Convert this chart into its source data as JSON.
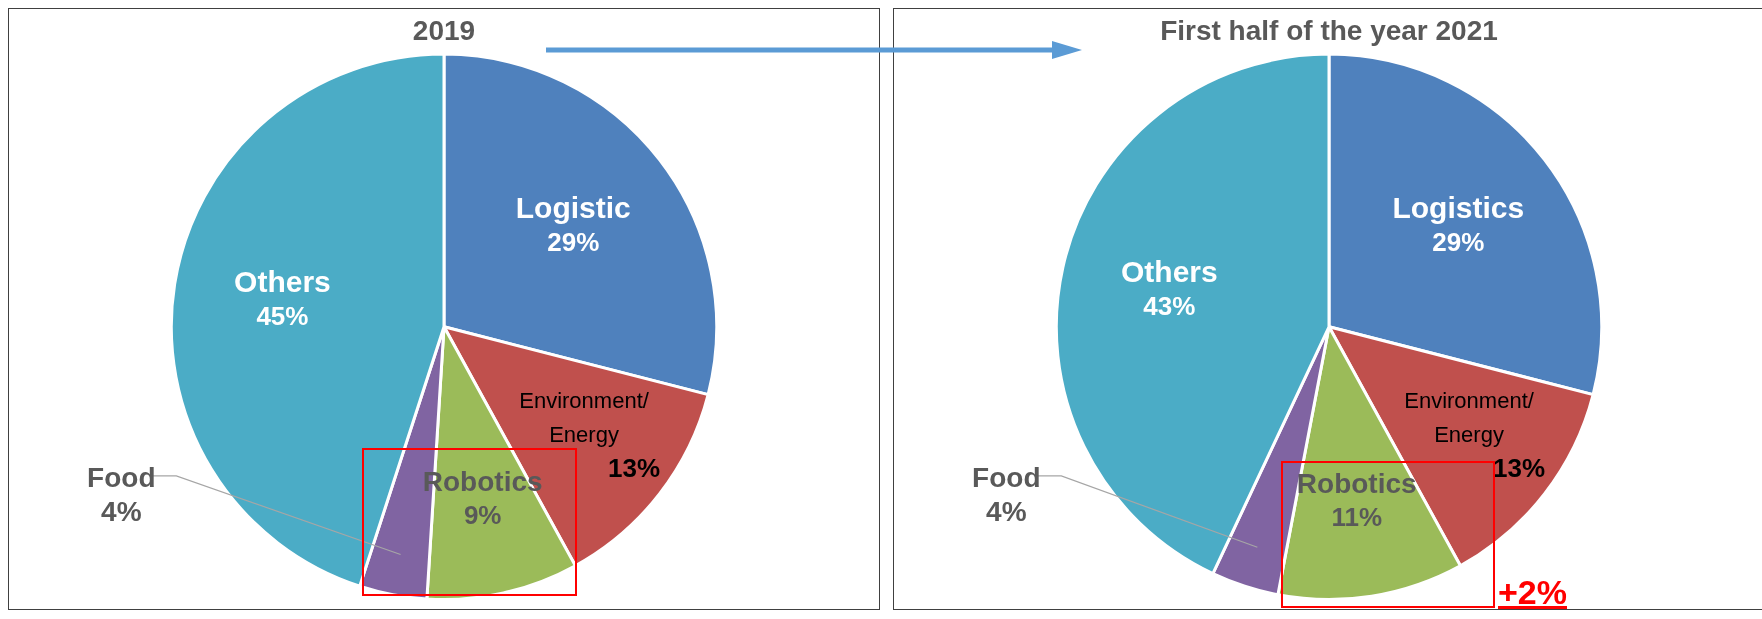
{
  "chart_data": [
    {
      "type": "pie",
      "title": "2019",
      "categories": [
        "Logistic",
        "Environment/ Energy",
        "Robotics",
        "Food",
        "Others"
      ],
      "values": [
        29,
        13,
        9,
        4,
        45
      ],
      "value_labels": [
        "29%",
        "13%",
        "9%",
        "4%",
        "45%"
      ],
      "colors": [
        "#4f81bd",
        "#c0504d",
        "#9bbb59",
        "#8064a2",
        "#4bacc6"
      ],
      "legend": false
    },
    {
      "type": "pie",
      "title": "First half of the year 2021",
      "categories": [
        "Logistics",
        "Environment/ Energy",
        "Robotics",
        "Food",
        "Others"
      ],
      "values": [
        29,
        13,
        11,
        4,
        43
      ],
      "value_labels": [
        "29%",
        "13%",
        "11%",
        "4%",
        "43%"
      ],
      "colors": [
        "#4f81bd",
        "#c0504d",
        "#9bbb59",
        "#8064a2",
        "#4bacc6"
      ],
      "legend": false,
      "annotations": [
        "+2%"
      ]
    }
  ]
}
